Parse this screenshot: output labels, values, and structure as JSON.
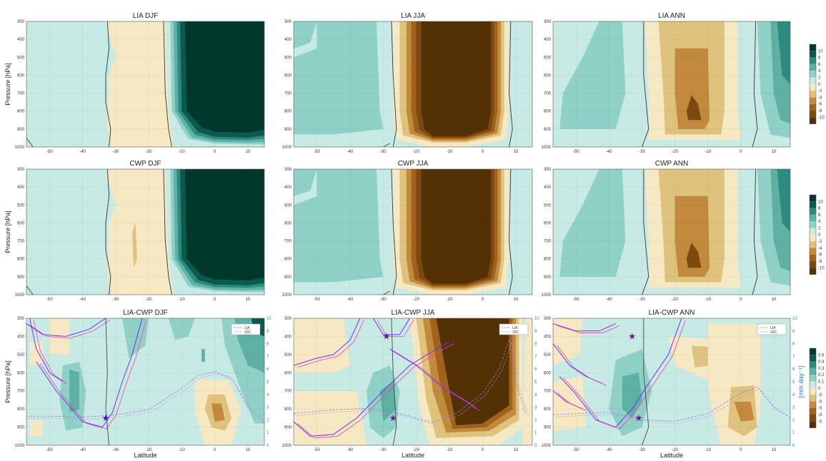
{
  "chart_data": {
    "type": "heatmap",
    "description": "3x3 grid of filled contour cross-sections (pressure vs latitude)",
    "x_axis": {
      "label": "Latitude",
      "lim": [
        -57,
        15
      ],
      "ticks": [
        -50,
        -40,
        -30,
        -20,
        -10,
        0,
        10
      ]
    },
    "y_axis": {
      "label": "Pressure [hPa]",
      "lim": [
        1000,
        300
      ],
      "ticks": [
        300,
        400,
        500,
        600,
        700,
        800,
        900,
        1000
      ]
    },
    "secondary_y_axis": {
      "label": "[mm day⁻¹]",
      "lim": [
        0,
        10
      ],
      "ticks": [
        0,
        1,
        2,
        3,
        4,
        5,
        6,
        7,
        8,
        9,
        10
      ],
      "panels": "bottom row"
    },
    "colorbars": [
      {
        "rows": "top",
        "levels": [
          10,
          8,
          6,
          4,
          2,
          0,
          -2,
          -4,
          -6,
          -8,
          -10
        ]
      },
      {
        "rows": "middle",
        "levels": [
          10,
          8,
          6,
          4,
          2,
          0,
          -2,
          -4,
          -6,
          -8,
          -10
        ]
      },
      {
        "rows": "bottom",
        "levels": [
          "0.5",
          "0.4",
          "0.3",
          "0.2",
          "0.1",
          "0",
          "-0.",
          "-0.",
          "-0.",
          "-0.",
          "-0."
        ]
      }
    ],
    "palette": [
      "#00382c",
      "#0b5a4e",
      "#2e8a7e",
      "#5fb0a5",
      "#8fd1c6",
      "#c7eae5",
      "#f6e8c3",
      "#dfc27d",
      "#c28a3c",
      "#a0621c",
      "#7a4a10",
      "#543005"
    ],
    "panels": [
      {
        "title": "LIA DJF",
        "row": 0,
        "col": 0,
        "dominant_negative_region_lat": [
          -32,
          -14
        ],
        "dominant_positive_region_lat": [
          -13,
          15
        ],
        "peak": 10
      },
      {
        "title": "LIA JJA",
        "row": 0,
        "col": 1,
        "dominant_negative_region_lat": [
          -26,
          8
        ],
        "peak": -10
      },
      {
        "title": "LIA ANN",
        "row": 0,
        "col": 2,
        "dominant_negative_region_lat": [
          -30,
          0
        ],
        "peak": -8
      },
      {
        "title": "CWP DJF",
        "row": 1,
        "col": 0,
        "dominant_negative_region_lat": [
          -32,
          -14
        ],
        "dominant_positive_region_lat": [
          -13,
          15
        ],
        "peak": 10
      },
      {
        "title": "CWP JJA",
        "row": 1,
        "col": 1,
        "dominant_negative_region_lat": [
          -26,
          8
        ],
        "peak": -10
      },
      {
        "title": "CWP ANN",
        "row": 1,
        "col": 2,
        "dominant_negative_region_lat": [
          -30,
          0
        ],
        "peak": -8
      },
      {
        "title": "LIA-CWP DJF",
        "row": 2,
        "col": 0,
        "legend": [
          "LIA",
          "20C"
        ],
        "star_lat": -33,
        "star_p": 850
      },
      {
        "title": "LIA-CWP JJA",
        "row": 2,
        "col": 1,
        "legend": [
          "LIA",
          "20C"
        ],
        "star_lat": [
          -29,
          -27
        ],
        "star_p": [
          400,
          850
        ]
      },
      {
        "title": "LIA-CWP ANN",
        "row": 2,
        "col": 2,
        "legend": [
          "LIA",
          "20C"
        ],
        "star_lat": [
          -33,
          -31
        ],
        "star_p": [
          400,
          850
        ]
      }
    ]
  },
  "labels": {
    "xlabel": "Latitude",
    "ylabel": "Pressure [hPa]",
    "sec_ylabel": "[mm day⁻¹]",
    "legend_lia": "LIA",
    "legend_20c": "20C"
  }
}
